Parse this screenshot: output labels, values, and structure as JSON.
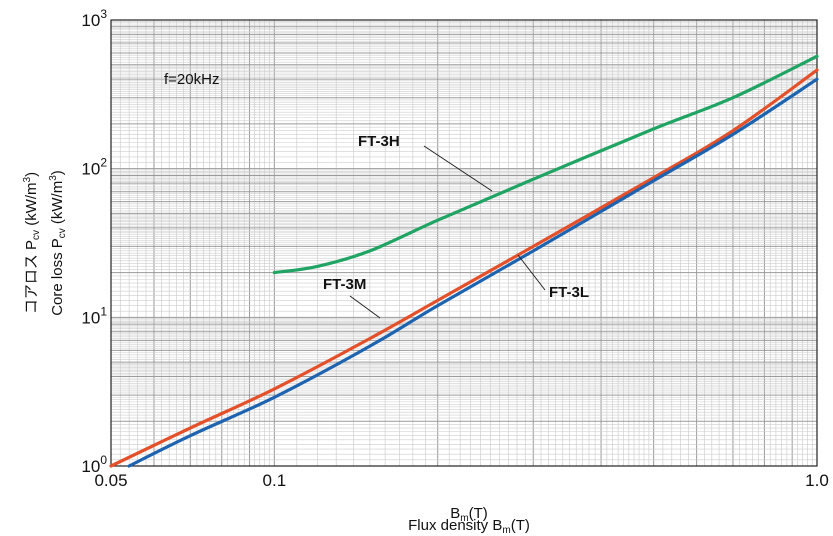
{
  "chart_data": {
    "type": "line",
    "xscale": "log",
    "yscale": "log",
    "xlim": [
      0.05,
      1.0
    ],
    "ylim": [
      1,
      1000
    ],
    "grid": true,
    "x_ticks": [
      {
        "value": 0.05,
        "label": "0.05"
      },
      {
        "value": 0.1,
        "label": "0.1"
      },
      {
        "value": 1.0,
        "label": "1.0"
      }
    ],
    "y_ticks": [
      {
        "value": 1,
        "base": "10",
        "exp": "0"
      },
      {
        "value": 10,
        "base": "10",
        "exp": "1"
      },
      {
        "value": 100,
        "base": "10",
        "exp": "2"
      },
      {
        "value": 1000,
        "base": "10",
        "exp": "3"
      }
    ],
    "xlabel_jp": {
      "main": "B",
      "sub": "m",
      "tail": "(T)"
    },
    "xlabel_en": {
      "main": "Flux density B",
      "sub": "m",
      "tail": "(T)"
    },
    "ylabel_jp": {
      "main": "コアロス P",
      "sub": "cv",
      "mid": " (kW/m",
      "sup": "3",
      "tail": ")"
    },
    "ylabel_en": {
      "main": "Core loss P",
      "sub": "cv",
      "mid": " (kW/m",
      "sup": "3",
      "tail": ")"
    },
    "annotation": "f=20kHz",
    "series": [
      {
        "name": "FT-3H",
        "color": "#1fa463",
        "points": [
          [
            0.1,
            20
          ],
          [
            0.12,
            22
          ],
          [
            0.15,
            28
          ],
          [
            0.2,
            45
          ],
          [
            0.3,
            85
          ],
          [
            0.5,
            185
          ],
          [
            0.7,
            300
          ],
          [
            1.0,
            570
          ]
        ]
      },
      {
        "name": "FT-3M",
        "color": "#e4502a",
        "points": [
          [
            0.05,
            1.0
          ],
          [
            0.07,
            1.8
          ],
          [
            0.1,
            3.3
          ],
          [
            0.15,
            7.2
          ],
          [
            0.2,
            13
          ],
          [
            0.3,
            30
          ],
          [
            0.5,
            87
          ],
          [
            0.7,
            180
          ],
          [
            1.0,
            460
          ]
        ]
      },
      {
        "name": "FT-3L",
        "color": "#1e63b0",
        "points": [
          [
            0.054,
            1.0
          ],
          [
            0.07,
            1.6
          ],
          [
            0.1,
            2.9
          ],
          [
            0.15,
            6.4
          ],
          [
            0.2,
            12
          ],
          [
            0.3,
            28
          ],
          [
            0.5,
            83
          ],
          [
            0.7,
            170
          ],
          [
            1.0,
            400
          ]
        ]
      }
    ]
  }
}
